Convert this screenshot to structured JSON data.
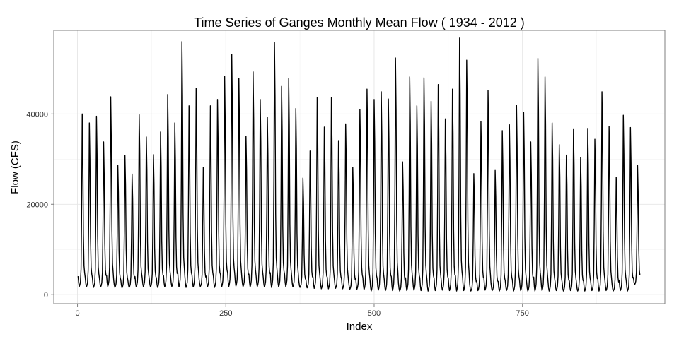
{
  "chart_data": {
    "type": "line",
    "title": "Time Series of Ganges Monthly Mean Flow ( 1934 - 2012 )",
    "xlabel": "Index",
    "ylabel": "Flow (CFS)",
    "xlim": [
      -40,
      990
    ],
    "ylim": [
      -2000,
      58500
    ],
    "x_ticks": [
      0,
      250,
      500,
      750
    ],
    "x_tick_labels": [
      "0",
      "250",
      "500",
      "750"
    ],
    "y_ticks": [
      0,
      20000,
      40000
    ],
    "y_tick_labels": [
      "0",
      "20000",
      "40000"
    ],
    "grid": true,
    "legend": "none",
    "line_color": "#000000",
    "n_points": 948,
    "annual_peaks": [
      40000,
      38000,
      39500,
      33800,
      43800,
      28600,
      30800,
      26700,
      39800,
      34900,
      31000,
      36000,
      44300,
      38000,
      56000,
      41800,
      45700,
      28200,
      41800,
      43200,
      48300,
      53200,
      47900,
      35100,
      49300,
      43200,
      39300,
      55800,
      46100,
      47800,
      41200,
      25800,
      31800,
      43600,
      37100,
      43600,
      34100,
      37800,
      28200,
      41000,
      45500,
      43200,
      44900,
      43300,
      52400,
      29400,
      48200,
      41800,
      48000,
      42800,
      46500,
      38900,
      45500,
      56800,
      51900,
      26800,
      38300,
      45200,
      27500,
      36300,
      37600,
      41900,
      40400,
      33800,
      52300,
      48200,
      38000,
      33200,
      30900,
      36700,
      30400,
      36800,
      34400,
      44900,
      37200,
      26000,
      39700,
      37000,
      28600
    ],
    "annual_troughs": [
      1800,
      1700,
      1600,
      1700,
      1800,
      1600,
      1500,
      1600,
      1700,
      1800,
      1700,
      1600,
      1700,
      1800,
      1700,
      1600,
      1700,
      1800,
      1700,
      1600,
      1700,
      1800,
      1900,
      1800,
      1700,
      1800,
      1700,
      1600,
      1700,
      1800,
      1700,
      1600,
      1500,
      1400,
      1300,
      1300,
      1400,
      1300,
      1200,
      1200,
      1100,
      800,
      1000,
      900,
      900,
      800,
      900,
      1000,
      900,
      800,
      900,
      1000,
      900,
      800,
      900,
      800,
      900,
      1000,
      900,
      800,
      900,
      800,
      900,
      800,
      800,
      900,
      800,
      900,
      800,
      900,
      800,
      800,
      900,
      800,
      900,
      800,
      900,
      800,
      2200
    ]
  }
}
